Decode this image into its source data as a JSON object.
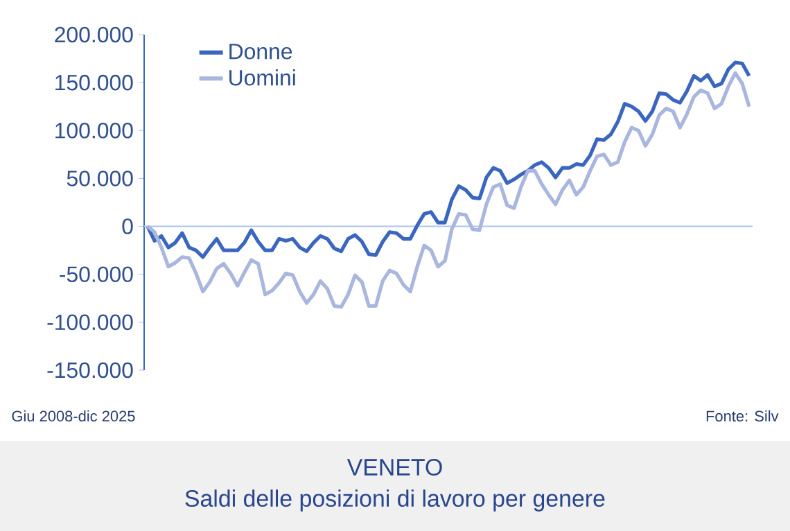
{
  "chart_data": {
    "type": "line",
    "title": "VENETO",
    "subtitle": "Saldi delle posizioni di lavoro per genere",
    "annotations": [
      "Giu 2008-dic 2025",
      "Fonte: Silv"
    ],
    "categories": [
      null,
      null,
      null,
      null,
      null,
      null,
      null,
      null,
      null,
      null,
      null,
      null,
      null,
      null,
      null,
      null,
      null,
      null,
      null,
      null,
      null,
      null,
      null,
      null,
      null,
      null,
      null,
      null,
      null,
      null,
      null,
      null,
      null,
      null,
      null,
      null,
      null,
      null,
      null,
      null,
      null,
      null,
      null,
      null,
      null,
      null,
      null,
      null,
      null,
      null,
      null,
      null,
      null,
      null,
      null,
      null,
      null,
      null,
      null,
      null,
      null,
      null,
      null,
      null,
      null,
      null,
      null,
      null,
      null,
      null,
      null,
      null,
      null,
      null,
      null,
      null,
      null,
      null,
      null,
      null,
      null,
      null,
      null,
      null,
      null,
      null,
      null,
      null
    ],
    "series": [
      {
        "name": "Donne",
        "color": "#3a66c0",
        "values": [
          0,
          -15000,
          -10000,
          -22000,
          -17000,
          -7000,
          -22000,
          -25000,
          -32000,
          -22000,
          -13000,
          -25000,
          -25000,
          -25000,
          -17000,
          -4000,
          -16000,
          -25000,
          -25000,
          -13000,
          -15000,
          -13000,
          -22000,
          -26000,
          -17000,
          -10000,
          -13000,
          -23000,
          -26000,
          -13000,
          -9000,
          -16000,
          -29000,
          -30000,
          -16000,
          -6000,
          -7000,
          -13000,
          -13000,
          1000,
          13000,
          15000,
          4000,
          4000,
          28000,
          42000,
          38000,
          30000,
          29000,
          51000,
          61000,
          58000,
          45000,
          49000,
          54000,
          58000,
          64000,
          67000,
          61000,
          51000,
          61000,
          61000,
          65000,
          64000,
          74000,
          91000,
          90000,
          96000,
          109000,
          128000,
          125000,
          120000,
          110000,
          120000,
          139000,
          138000,
          132000,
          129000,
          141000,
          157000,
          152000,
          158000,
          146000,
          149000,
          164000,
          171000,
          170000,
          157000
        ]
      },
      {
        "name": "Uomini",
        "color": "#a9b6dd",
        "values": [
          0,
          -6000,
          -22000,
          -42000,
          -38000,
          -32000,
          -33000,
          -49000,
          -68000,
          -58000,
          -44000,
          -39000,
          -49000,
          -62000,
          -48000,
          -35000,
          -39000,
          -71000,
          -67000,
          -59000,
          -49000,
          -51000,
          -68000,
          -80000,
          -71000,
          -57000,
          -65000,
          -83000,
          -84000,
          -71000,
          -51000,
          -58000,
          -83000,
          -83000,
          -57000,
          -46000,
          -49000,
          -61000,
          -68000,
          -42000,
          -20000,
          -25000,
          -42000,
          -36000,
          -3000,
          13000,
          12000,
          -3000,
          -4000,
          23000,
          41000,
          44000,
          22000,
          19000,
          41000,
          58000,
          58000,
          44000,
          33000,
          23000,
          38000,
          48000,
          33000,
          41000,
          58000,
          73000,
          75000,
          64000,
          67000,
          88000,
          103000,
          100000,
          84000,
          96000,
          116000,
          123000,
          120000,
          103000,
          117000,
          135000,
          142000,
          139000,
          123000,
          128000,
          146000,
          160000,
          149000,
          125000
        ]
      }
    ],
    "ylim": [
      -150000,
      200000
    ],
    "yticks": [
      {
        "value": -150000,
        "label": "-150.000"
      },
      {
        "value": -100000,
        "label": "-100.000"
      },
      {
        "value": -50000,
        "label": "-50.000"
      },
      0,
      {
        "value": 50000,
        "label": "50.000"
      },
      {
        "value": 100000,
        "label": "100.000"
      },
      {
        "value": 150000,
        "label": "150.000"
      },
      {
        "value": 200000,
        "label": "200.000"
      }
    ],
    "ref_lines": [
      {
        "axis": "y",
        "value": 0,
        "color": "#a9c4ec"
      }
    ],
    "legend": "top left",
    "grid": false,
    "marker": "none",
    "line_style": "solid"
  }
}
